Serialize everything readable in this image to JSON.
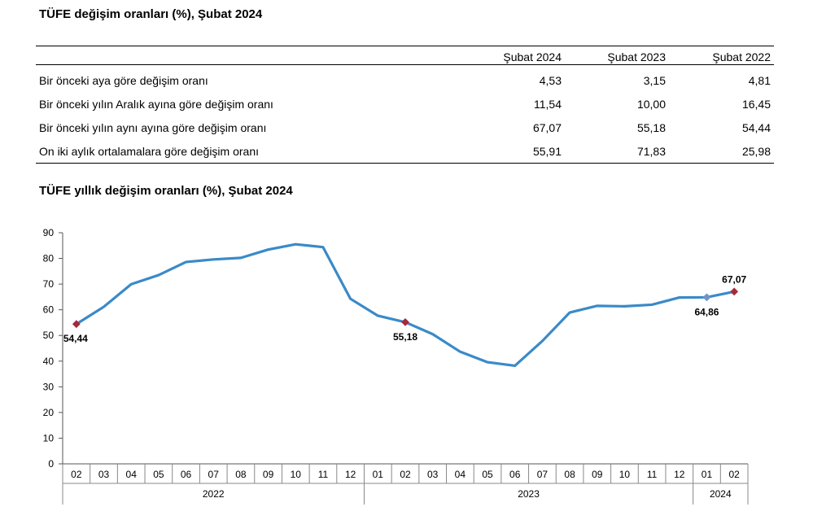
{
  "table": {
    "title": "TÜFE değişim oranları (%), Şubat 2024",
    "columns": [
      "",
      "Şubat 2024",
      "Şubat 2023",
      "Şubat 2022"
    ],
    "rows": [
      {
        "label": "Bir önceki aya göre değişim oranı",
        "values": [
          "4,53",
          "3,15",
          "4,81"
        ]
      },
      {
        "label": "Bir önceki yılın Aralık ayına göre değişim oranı",
        "values": [
          "11,54",
          "10,00",
          "16,45"
        ]
      },
      {
        "label": "Bir önceki yılın aynı ayına göre değişim oranı",
        "values": [
          "67,07",
          "55,18",
          "54,44"
        ]
      },
      {
        "label": "On iki aylık ortalamalara göre değişim oranı",
        "values": [
          "55,91",
          "71,83",
          "25,98"
        ]
      }
    ]
  },
  "chart_data": {
    "type": "line",
    "title": "TÜFE yıllık değişim oranları (%), Şubat 2024",
    "xlabel": "",
    "ylabel": "",
    "ylim": [
      0,
      90
    ],
    "yticks": [
      0,
      10,
      20,
      30,
      40,
      50,
      60,
      70,
      80,
      90
    ],
    "grid": false,
    "categories": [
      "02",
      "03",
      "04",
      "05",
      "06",
      "07",
      "08",
      "09",
      "10",
      "11",
      "12",
      "01",
      "02",
      "03",
      "04",
      "05",
      "06",
      "07",
      "08",
      "09",
      "10",
      "11",
      "12",
      "01",
      "02"
    ],
    "year_groups": [
      {
        "label": "2022",
        "count": 11
      },
      {
        "label": "2023",
        "count": 12
      },
      {
        "label": "2024",
        "count": 2
      }
    ],
    "series": [
      {
        "color": "#3a8ac8",
        "values": [
          54.44,
          61.14,
          69.97,
          73.5,
          78.62,
          79.6,
          80.21,
          83.45,
          85.51,
          84.39,
          64.27,
          57.68,
          55.18,
          50.51,
          43.68,
          39.59,
          38.21,
          47.83,
          58.94,
          61.53,
          61.36,
          61.98,
          64.77,
          64.86,
          67.07
        ]
      }
    ],
    "marker_color": "#a52a3a",
    "annotations": [
      {
        "index": 0,
        "label": "54,44",
        "position": "below"
      },
      {
        "index": 12,
        "label": "55,18",
        "position": "below"
      },
      {
        "index": 23,
        "label": "64,86",
        "position": "below"
      },
      {
        "index": 24,
        "label": "67,07",
        "position": "above"
      }
    ]
  }
}
